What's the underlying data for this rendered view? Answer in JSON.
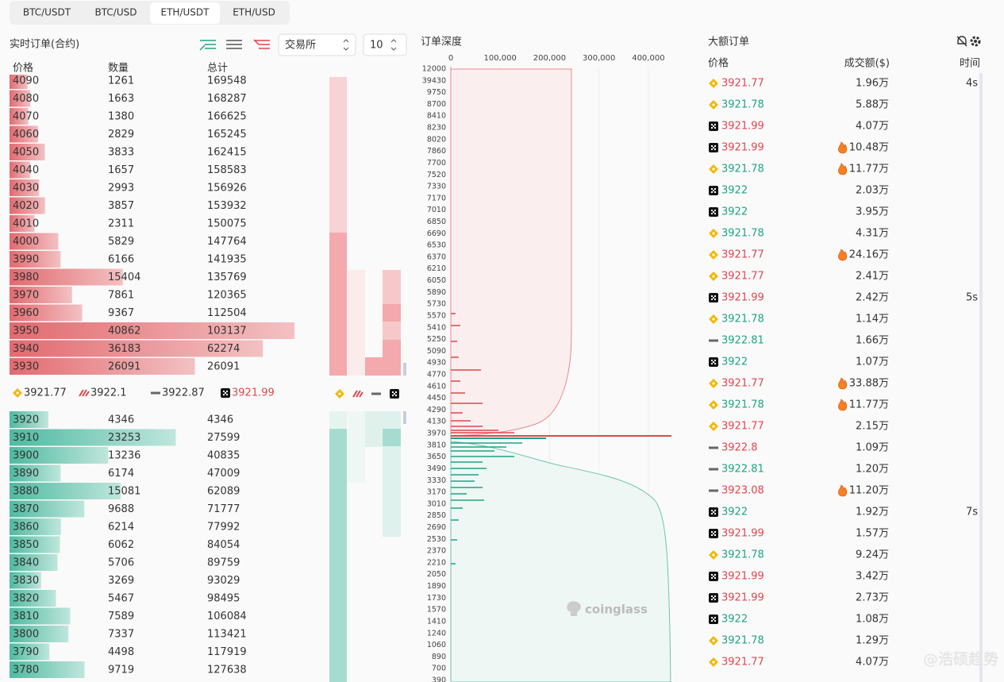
{
  "tabs": [
    "BTC/USDT",
    "BTC/USD",
    "ETH/USDT",
    "ETH/USD"
  ],
  "active_tab": 2,
  "orderbook": {
    "title": "实时订单(合约)",
    "exchange_select": "交易所",
    "depth_select": "10",
    "headers": [
      "价格",
      "数量",
      "总计"
    ],
    "asks": [
      [
        4090,
        1261,
        169548
      ],
      [
        4080,
        1663,
        168287
      ],
      [
        4070,
        1380,
        166625
      ],
      [
        4060,
        2829,
        165245
      ],
      [
        4050,
        3833,
        162415
      ],
      [
        4040,
        1657,
        158583
      ],
      [
        4030,
        2993,
        156926
      ],
      [
        4020,
        3857,
        153932
      ],
      [
        4010,
        2311,
        150075
      ],
      [
        4000,
        5829,
        147764
      ],
      [
        3990,
        6166,
        141935
      ],
      [
        3980,
        15404,
        135769
      ],
      [
        3970,
        7861,
        120365
      ],
      [
        3960,
        9367,
        112504
      ],
      [
        3950,
        40862,
        103137
      ],
      [
        3940,
        36183,
        62274
      ],
      [
        3930,
        26091,
        26091
      ]
    ],
    "mid_prices": [
      {
        "exchange": "binance",
        "price": 3921.77,
        "side": "neutral"
      },
      {
        "exchange": "bitmex",
        "price": 3922.1,
        "side": "neutral"
      },
      {
        "exchange": "bybit",
        "price": 3922.87,
        "side": "neutral"
      },
      {
        "exchange": "okx",
        "price": 3921.99,
        "side": "sell"
      }
    ],
    "bids": [
      [
        3920,
        4346,
        4346
      ],
      [
        3910,
        23253,
        27599
      ],
      [
        3900,
        13236,
        40835
      ],
      [
        3890,
        6174,
        47009
      ],
      [
        3880,
        15081,
        62089
      ],
      [
        3870,
        9688,
        71777
      ],
      [
        3860,
        6214,
        77992
      ],
      [
        3850,
        6062,
        84054
      ],
      [
        3840,
        5706,
        89759
      ],
      [
        3830,
        3269,
        93029
      ],
      [
        3820,
        5467,
        98495
      ],
      [
        3810,
        7589,
        106084
      ],
      [
        3800,
        7337,
        113421
      ],
      [
        3790,
        4498,
        117919
      ],
      [
        3780,
        9719,
        127638
      ]
    ]
  },
  "depth": {
    "title": "订单深度",
    "xlim": [
      0,
      450000
    ],
    "xticks": [
      0,
      {
        "value": 100000,
        "label": "100,000"
      },
      {
        "value": 200000,
        "label": "200,000"
      },
      {
        "value": 300000,
        "label": "300,000"
      },
      {
        "value": 400000,
        "label": "400,000"
      }
    ],
    "price_labels": [
      12000,
      39430,
      9750,
      8700,
      8410,
      8230,
      8020,
      7860,
      7700,
      7520,
      7330,
      7170,
      7010,
      6850,
      6690,
      6530,
      6370,
      6210,
      6050,
      5890,
      5730,
      5570,
      5410,
      5250,
      5090,
      4930,
      4770,
      4610,
      4450,
      4290,
      4130,
      3970,
      3810,
      3650,
      3490,
      3330,
      3170,
      3010,
      2850,
      2690,
      2530,
      2370,
      2210,
      2050,
      1890,
      1730,
      1570,
      1410,
      1240,
      1060,
      890,
      700,
      390
    ],
    "watermark": "coinglass"
  },
  "large_orders": {
    "title": "大额订单",
    "headers": [
      "价格",
      "成交额($)",
      "时间"
    ],
    "rows": [
      {
        "exchange": "binance",
        "price": 3921.77,
        "side": "sell",
        "amount": "1.96万",
        "hot": false,
        "time": "4s"
      },
      {
        "exchange": "binance",
        "price": 3921.78,
        "side": "buy",
        "amount": "5.88万",
        "hot": false
      },
      {
        "exchange": "okx",
        "price": 3921.99,
        "side": "sell",
        "amount": "4.07万",
        "hot": false
      },
      {
        "exchange": "okx",
        "price": 3921.99,
        "side": "sell",
        "amount": "10.48万",
        "hot": true
      },
      {
        "exchange": "binance",
        "price": 3921.78,
        "side": "buy",
        "amount": "11.77万",
        "hot": true
      },
      {
        "exchange": "okx",
        "price": 3922,
        "side": "buy",
        "amount": "2.03万",
        "hot": false
      },
      {
        "exchange": "okx",
        "price": 3922,
        "side": "buy",
        "amount": "3.95万",
        "hot": false
      },
      {
        "exchange": "binance",
        "price": 3921.78,
        "side": "buy",
        "amount": "4.31万",
        "hot": false
      },
      {
        "exchange": "binance",
        "price": 3921.77,
        "side": "sell",
        "amount": "24.16万",
        "hot": true
      },
      {
        "exchange": "binance",
        "price": 3921.77,
        "side": "sell",
        "amount": "2.41万",
        "hot": false
      },
      {
        "exchange": "okx",
        "price": 3921.99,
        "side": "sell",
        "amount": "2.42万",
        "hot": false,
        "time": "5s"
      },
      {
        "exchange": "binance",
        "price": 3921.78,
        "side": "buy",
        "amount": "1.14万",
        "hot": false
      },
      {
        "exchange": "bybit",
        "price": 3922.81,
        "side": "buy",
        "amount": "1.66万",
        "hot": false
      },
      {
        "exchange": "okx",
        "price": 3922,
        "side": "buy",
        "amount": "1.07万",
        "hot": false
      },
      {
        "exchange": "binance",
        "price": 3921.77,
        "side": "sell",
        "amount": "33.88万",
        "hot": true
      },
      {
        "exchange": "binance",
        "price": 3921.78,
        "side": "buy",
        "amount": "11.77万",
        "hot": true
      },
      {
        "exchange": "binance",
        "price": 3921.77,
        "side": "sell",
        "amount": "2.15万",
        "hot": false
      },
      {
        "exchange": "bybit",
        "price": 3922.8,
        "side": "sell",
        "amount": "1.09万",
        "hot": false
      },
      {
        "exchange": "bybit",
        "price": 3922.81,
        "side": "buy",
        "amount": "1.20万",
        "hot": false
      },
      {
        "exchange": "bybit",
        "price": 3923.08,
        "side": "sell",
        "amount": "11.20万",
        "hot": true
      },
      {
        "exchange": "okx",
        "price": 3922,
        "side": "buy",
        "amount": "1.92万",
        "hot": false,
        "time": "7s"
      },
      {
        "exchange": "okx",
        "price": 3921.99,
        "side": "sell",
        "amount": "1.57万",
        "hot": false
      },
      {
        "exchange": "binance",
        "price": 3921.78,
        "side": "buy",
        "amount": "9.24万",
        "hot": false
      },
      {
        "exchange": "okx",
        "price": 3921.99,
        "side": "sell",
        "amount": "3.42万",
        "hot": false
      },
      {
        "exchange": "okx",
        "price": 3921.99,
        "side": "sell",
        "amount": "2.73万",
        "hot": false
      },
      {
        "exchange": "okx",
        "price": 3922,
        "side": "buy",
        "amount": "1.08万",
        "hot": false
      },
      {
        "exchange": "binance",
        "price": 3921.78,
        "side": "buy",
        "amount": "1.29万",
        "hot": false
      },
      {
        "exchange": "binance",
        "price": 3921.77,
        "side": "sell",
        "amount": "4.07万",
        "hot": false
      }
    ]
  },
  "watermark": "@浩硕趋势"
}
